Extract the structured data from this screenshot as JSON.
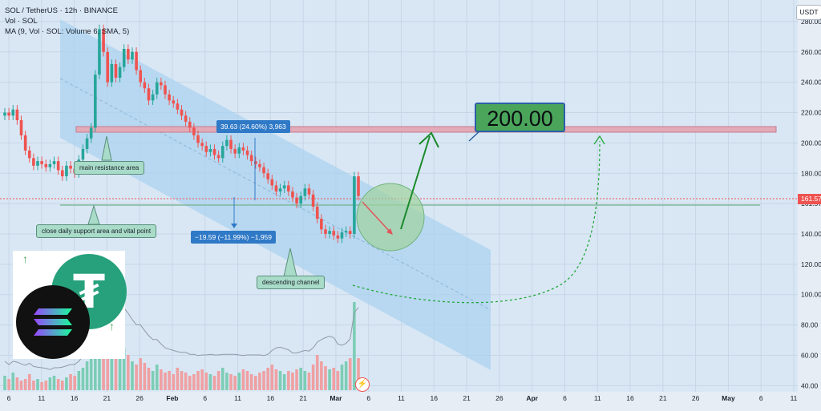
{
  "legend": {
    "line1": "SOL / TetherUS · 12h · BINANCE",
    "line2": "Vol · SOL",
    "line3": "MA (9, Vol · SOL: Volume",
    "line3b": "6, SMA, 5)"
  },
  "symbol_badge": "USDT",
  "last_price_tag": "161.57",
  "target_label": "200.00",
  "annotations": {
    "resistance": "main resistance area",
    "support": "close daily support area and vital point",
    "channel": "descending channel"
  },
  "measurements": {
    "up": "39.63 (24.60%) 3,963",
    "down": "−19.59 (−11.99%) −1,959"
  },
  "logos": [
    "tether-icon",
    "solana-icon"
  ],
  "colors": {
    "up": "#26a69a",
    "down": "#ef5350",
    "channel": "#a9d2ef",
    "resistance": "#e3aab8",
    "projection": "#1a8a2a"
  },
  "chart_data": {
    "type": "candlestick",
    "title": "SOL / TetherUS · 12h · BINANCE",
    "y_axis": {
      "ticks": [
        280,
        260,
        240,
        220,
        200,
        180,
        160,
        140,
        120,
        100,
        80,
        60,
        40
      ],
      "tick_labels": [
        "280.00",
        "260.00",
        "240.00",
        "220.00",
        "200.00",
        "180.00",
        "161.57",
        "140.00",
        "120.00",
        "100.00",
        "80.00",
        "60.00",
        "40.00"
      ],
      "range": [
        37,
        290
      ]
    },
    "x_axis": {
      "tick_labels": [
        "6",
        "11",
        "16",
        "21",
        "26",
        "Feb",
        "6",
        "11",
        "16",
        "21",
        "Mar",
        "6",
        "11",
        "16",
        "21",
        "26",
        "Apr",
        "6",
        "11",
        "16",
        "21",
        "26",
        "May",
        "6",
        "11"
      ]
    },
    "resistance_level": 207,
    "support_level": 157,
    "last_price": 161.57,
    "target_price": 200.0,
    "series": [
      {
        "name": "price",
        "close": [
          220,
          218,
          222,
          215,
          205,
          195,
          190,
          185,
          188,
          186,
          184,
          186,
          188,
          182,
          178,
          185,
          183,
          180,
          189,
          196,
          203,
          210,
          245,
          275,
          260,
          240,
          252,
          243,
          250,
          262,
          255,
          260,
          248,
          240,
          236,
          228,
          232,
          240,
          238,
          232,
          228,
          226,
          222,
          218,
          214,
          210,
          205,
          200,
          198,
          194,
          196,
          192,
          190,
          198,
          202,
          196,
          193,
          197,
          195,
          192,
          188,
          186,
          184,
          180,
          176,
          172,
          168,
          170,
          172,
          168,
          164,
          160,
          165,
          170,
          166,
          158,
          150,
          143,
          140,
          142,
          139,
          137,
          141,
          142,
          140,
          178,
          165
        ]
      },
      {
        "name": "Vol · SOL",
        "values": [
          9,
          7,
          11,
          8,
          6,
          7,
          10,
          6,
          7,
          5,
          6,
          8,
          9,
          7,
          6,
          8,
          10,
          9,
          12,
          14,
          18,
          22,
          45,
          60,
          40,
          30,
          28,
          24,
          20,
          26,
          22,
          18,
          16,
          20,
          17,
          14,
          12,
          16,
          13,
          11,
          12,
          10,
          14,
          12,
          11,
          9,
          10,
          12,
          13,
          11,
          10,
          9,
          12,
          14,
          11,
          10,
          9,
          11,
          13,
          12,
          10,
          9,
          11,
          12,
          14,
          16,
          13,
          12,
          10,
          12,
          11,
          13,
          14,
          12,
          11,
          16,
          22,
          18,
          15,
          13,
          14,
          12,
          16,
          18,
          20,
          55,
          20
        ]
      }
    ]
  }
}
